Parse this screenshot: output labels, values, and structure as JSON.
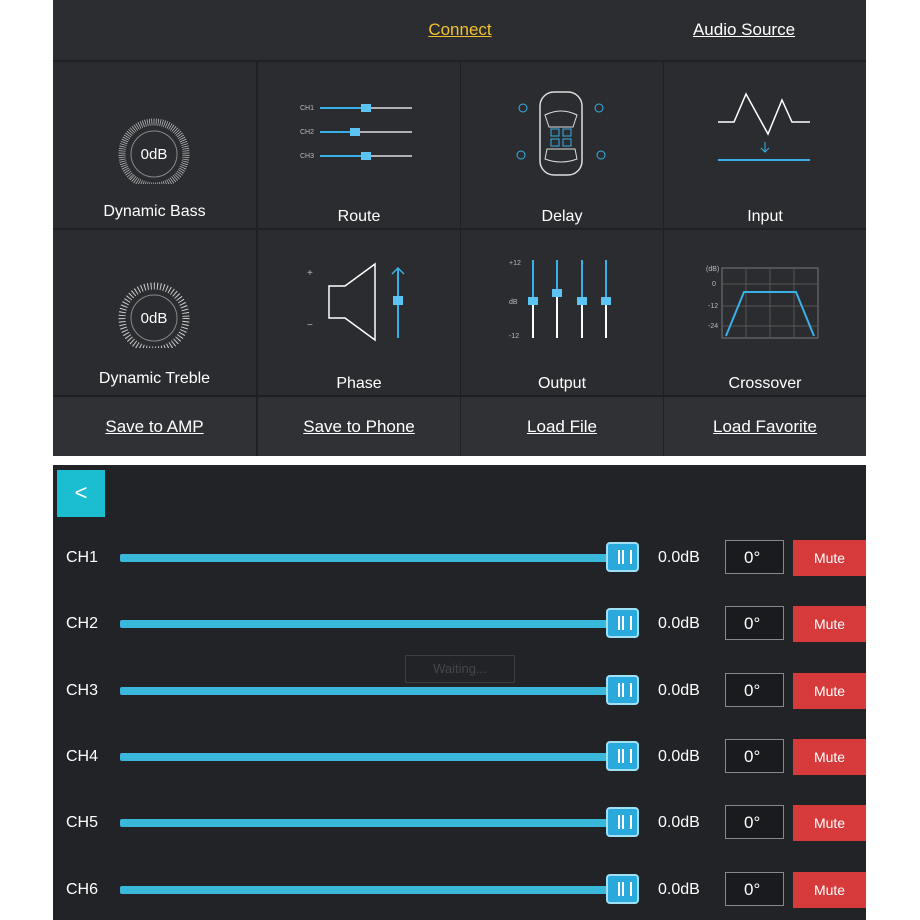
{
  "header": {
    "links": [
      "Connect",
      "Audio Source"
    ]
  },
  "tiles": [
    {
      "label": "Dynamic Bass",
      "gauge": "0dB"
    },
    {
      "label": "Route",
      "channels": [
        "CH1",
        "CH2",
        "CH3"
      ]
    },
    {
      "label": "Delay"
    },
    {
      "label": "Input"
    },
    {
      "label": "Dynamic Treble",
      "gauge": "0dB"
    },
    {
      "label": "Phase",
      "signs": [
        "+",
        "−"
      ]
    },
    {
      "label": "Output",
      "scale": [
        "+12",
        "dB",
        "-12"
      ]
    },
    {
      "label": "Crossover",
      "scale": [
        "(dB)",
        "0",
        "-12",
        "-24"
      ]
    }
  ],
  "buttons": [
    "Save to AMP",
    "Save to Phone",
    "Load File",
    "Load Favorite"
  ],
  "back": "<",
  "status": "Waiting...",
  "channels": [
    {
      "name": "CH1",
      "level": "0.0dB",
      "phase": "0°",
      "mute": "Mute"
    },
    {
      "name": "CH2",
      "level": "0.0dB",
      "phase": "0°",
      "mute": "Mute"
    },
    {
      "name": "CH3",
      "level": "0.0dB",
      "phase": "0°",
      "mute": "Mute"
    },
    {
      "name": "CH4",
      "level": "0.0dB",
      "phase": "0°",
      "mute": "Mute"
    },
    {
      "name": "CH5",
      "level": "0.0dB",
      "phase": "0°",
      "mute": "Mute"
    },
    {
      "name": "CH6",
      "level": "0.0dB",
      "phase": "0°",
      "mute": "Mute"
    }
  ]
}
